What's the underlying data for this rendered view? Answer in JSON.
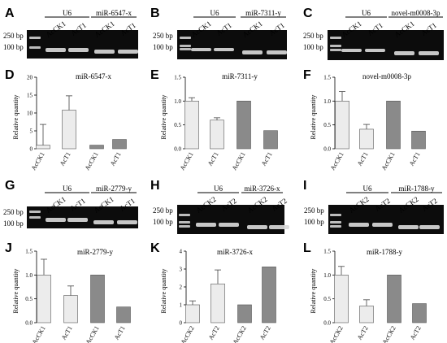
{
  "figure": {
    "panel_labels": [
      "A",
      "B",
      "C",
      "D",
      "E",
      "F",
      "G",
      "H",
      "I",
      "J",
      "K",
      "L"
    ],
    "bp_labels": [
      "250 bp",
      "100 bp"
    ],
    "ylabel": "Relative quantity",
    "gels": [
      {
        "id": "A",
        "groups": [
          {
            "name": "U6",
            "lanes": [
              "AcCK1",
              "AcT1"
            ]
          },
          {
            "name": "miR-6547-x",
            "lanes": [
              "AcCK1",
              "AcT1"
            ]
          }
        ]
      },
      {
        "id": "B",
        "groups": [
          {
            "name": "U6",
            "lanes": [
              "AcCK1",
              "AcT1"
            ]
          },
          {
            "name": "miR-7311-y",
            "lanes": [
              "AcCK1",
              "AcT1"
            ]
          }
        ]
      },
      {
        "id": "C",
        "groups": [
          {
            "name": "U6",
            "lanes": [
              "AcCK1",
              "AcT1"
            ]
          },
          {
            "name": "novel-m0008-3p",
            "lanes": [
              "AcCK1",
              "AcT1"
            ]
          }
        ]
      },
      {
        "id": "G",
        "groups": [
          {
            "name": "U6",
            "lanes": [
              "AcCK1",
              "AcT1"
            ]
          },
          {
            "name": "miR-2779-y",
            "lanes": [
              "AcCK1",
              "AcT1"
            ]
          }
        ]
      },
      {
        "id": "H",
        "groups": [
          {
            "name": "U6",
            "lanes": [
              "AcCK2",
              "AcT2"
            ]
          },
          {
            "name": "miR-3726-x",
            "lanes": [
              "AcCK2",
              "AcT2"
            ]
          }
        ]
      },
      {
        "id": "I",
        "groups": [
          {
            "name": "U6",
            "lanes": [
              "AcCK2",
              "AcT2"
            ]
          },
          {
            "name": "miR-1788-y",
            "lanes": [
              "AcCK2",
              "AcT2"
            ]
          }
        ]
      }
    ]
  },
  "chart_data": [
    {
      "panel": "D",
      "type": "bar",
      "title": "miR-6547-x",
      "ylabel": "Relative quantity",
      "categories": [
        "AcCK1",
        "AcT1",
        "AcCK1",
        "AcT1"
      ],
      "values": [
        1.0,
        10.8,
        1.0,
        2.6
      ],
      "errors": [
        5.8,
        4.0,
        null,
        null
      ],
      "fills": [
        "light",
        "light",
        "dark",
        "dark"
      ],
      "ylim": [
        0,
        20
      ],
      "yticks": [
        0,
        5,
        10,
        15,
        20
      ]
    },
    {
      "panel": "E",
      "type": "bar",
      "title": "miR-7311-y",
      "ylabel": "Relative quantity",
      "categories": [
        "AcCK1",
        "AcT1",
        "AcCK1",
        "AcT1"
      ],
      "values": [
        1.0,
        0.6,
        1.0,
        0.38
      ],
      "errors": [
        0.07,
        0.05,
        null,
        null
      ],
      "fills": [
        "light",
        "light",
        "dark",
        "dark"
      ],
      "ylim": [
        0,
        1.5
      ],
      "yticks": [
        0,
        0.5,
        1.0,
        1.5
      ]
    },
    {
      "panel": "F",
      "type": "bar",
      "title": "novel-m0008-3p",
      "ylabel": "Relative quantity",
      "categories": [
        "AcCK1",
        "AcT1",
        "AcCK1",
        "AcT1"
      ],
      "values": [
        1.0,
        0.41,
        1.0,
        0.37
      ],
      "errors": [
        0.2,
        0.1,
        null,
        null
      ],
      "fills": [
        "light",
        "light",
        "dark",
        "dark"
      ],
      "ylim": [
        0,
        1.5
      ],
      "yticks": [
        0,
        0.5,
        1.0,
        1.5
      ]
    },
    {
      "panel": "J",
      "type": "bar",
      "title": "miR-2779-y",
      "ylabel": "Relative quantity",
      "categories": [
        "AcCK1",
        "AcT1",
        "AcCK1",
        "AcT1"
      ],
      "values": [
        1.0,
        0.57,
        1.0,
        0.33
      ],
      "errors": [
        0.33,
        0.2,
        null,
        null
      ],
      "fills": [
        "light",
        "light",
        "dark",
        "dark"
      ],
      "ylim": [
        0,
        1.5
      ],
      "yticks": [
        0,
        0.5,
        1.0,
        1.5
      ]
    },
    {
      "panel": "K",
      "type": "bar",
      "title": "miR-3726-x",
      "ylabel": "Relative quantity",
      "categories": [
        "AcCK2",
        "AcT2",
        "AcCK2",
        "AcT2"
      ],
      "values": [
        1.0,
        2.17,
        1.0,
        3.12
      ],
      "errors": [
        0.22,
        0.78,
        null,
        null
      ],
      "fills": [
        "light",
        "light",
        "dark",
        "dark"
      ],
      "ylim": [
        0,
        4
      ],
      "yticks": [
        0,
        1,
        2,
        3,
        4
      ]
    },
    {
      "panel": "L",
      "type": "bar",
      "title": "miR-1788-y",
      "ylabel": "Relative quantity",
      "categories": [
        "AcCK2",
        "AcT2",
        "AcCK2",
        "AcT2"
      ],
      "values": [
        1.0,
        0.35,
        1.0,
        0.4
      ],
      "errors": [
        0.18,
        0.13,
        null,
        null
      ],
      "fills": [
        "light",
        "light",
        "dark",
        "dark"
      ],
      "ylim": [
        0,
        1.5
      ],
      "yticks": [
        0,
        0.5,
        1.0,
        1.5
      ]
    }
  ],
  "colors": {
    "light_bar": "#ececec",
    "dark_bar": "#8a8a8a",
    "gel_bg": "#0c0c0c",
    "band": "#d8d8d8"
  }
}
